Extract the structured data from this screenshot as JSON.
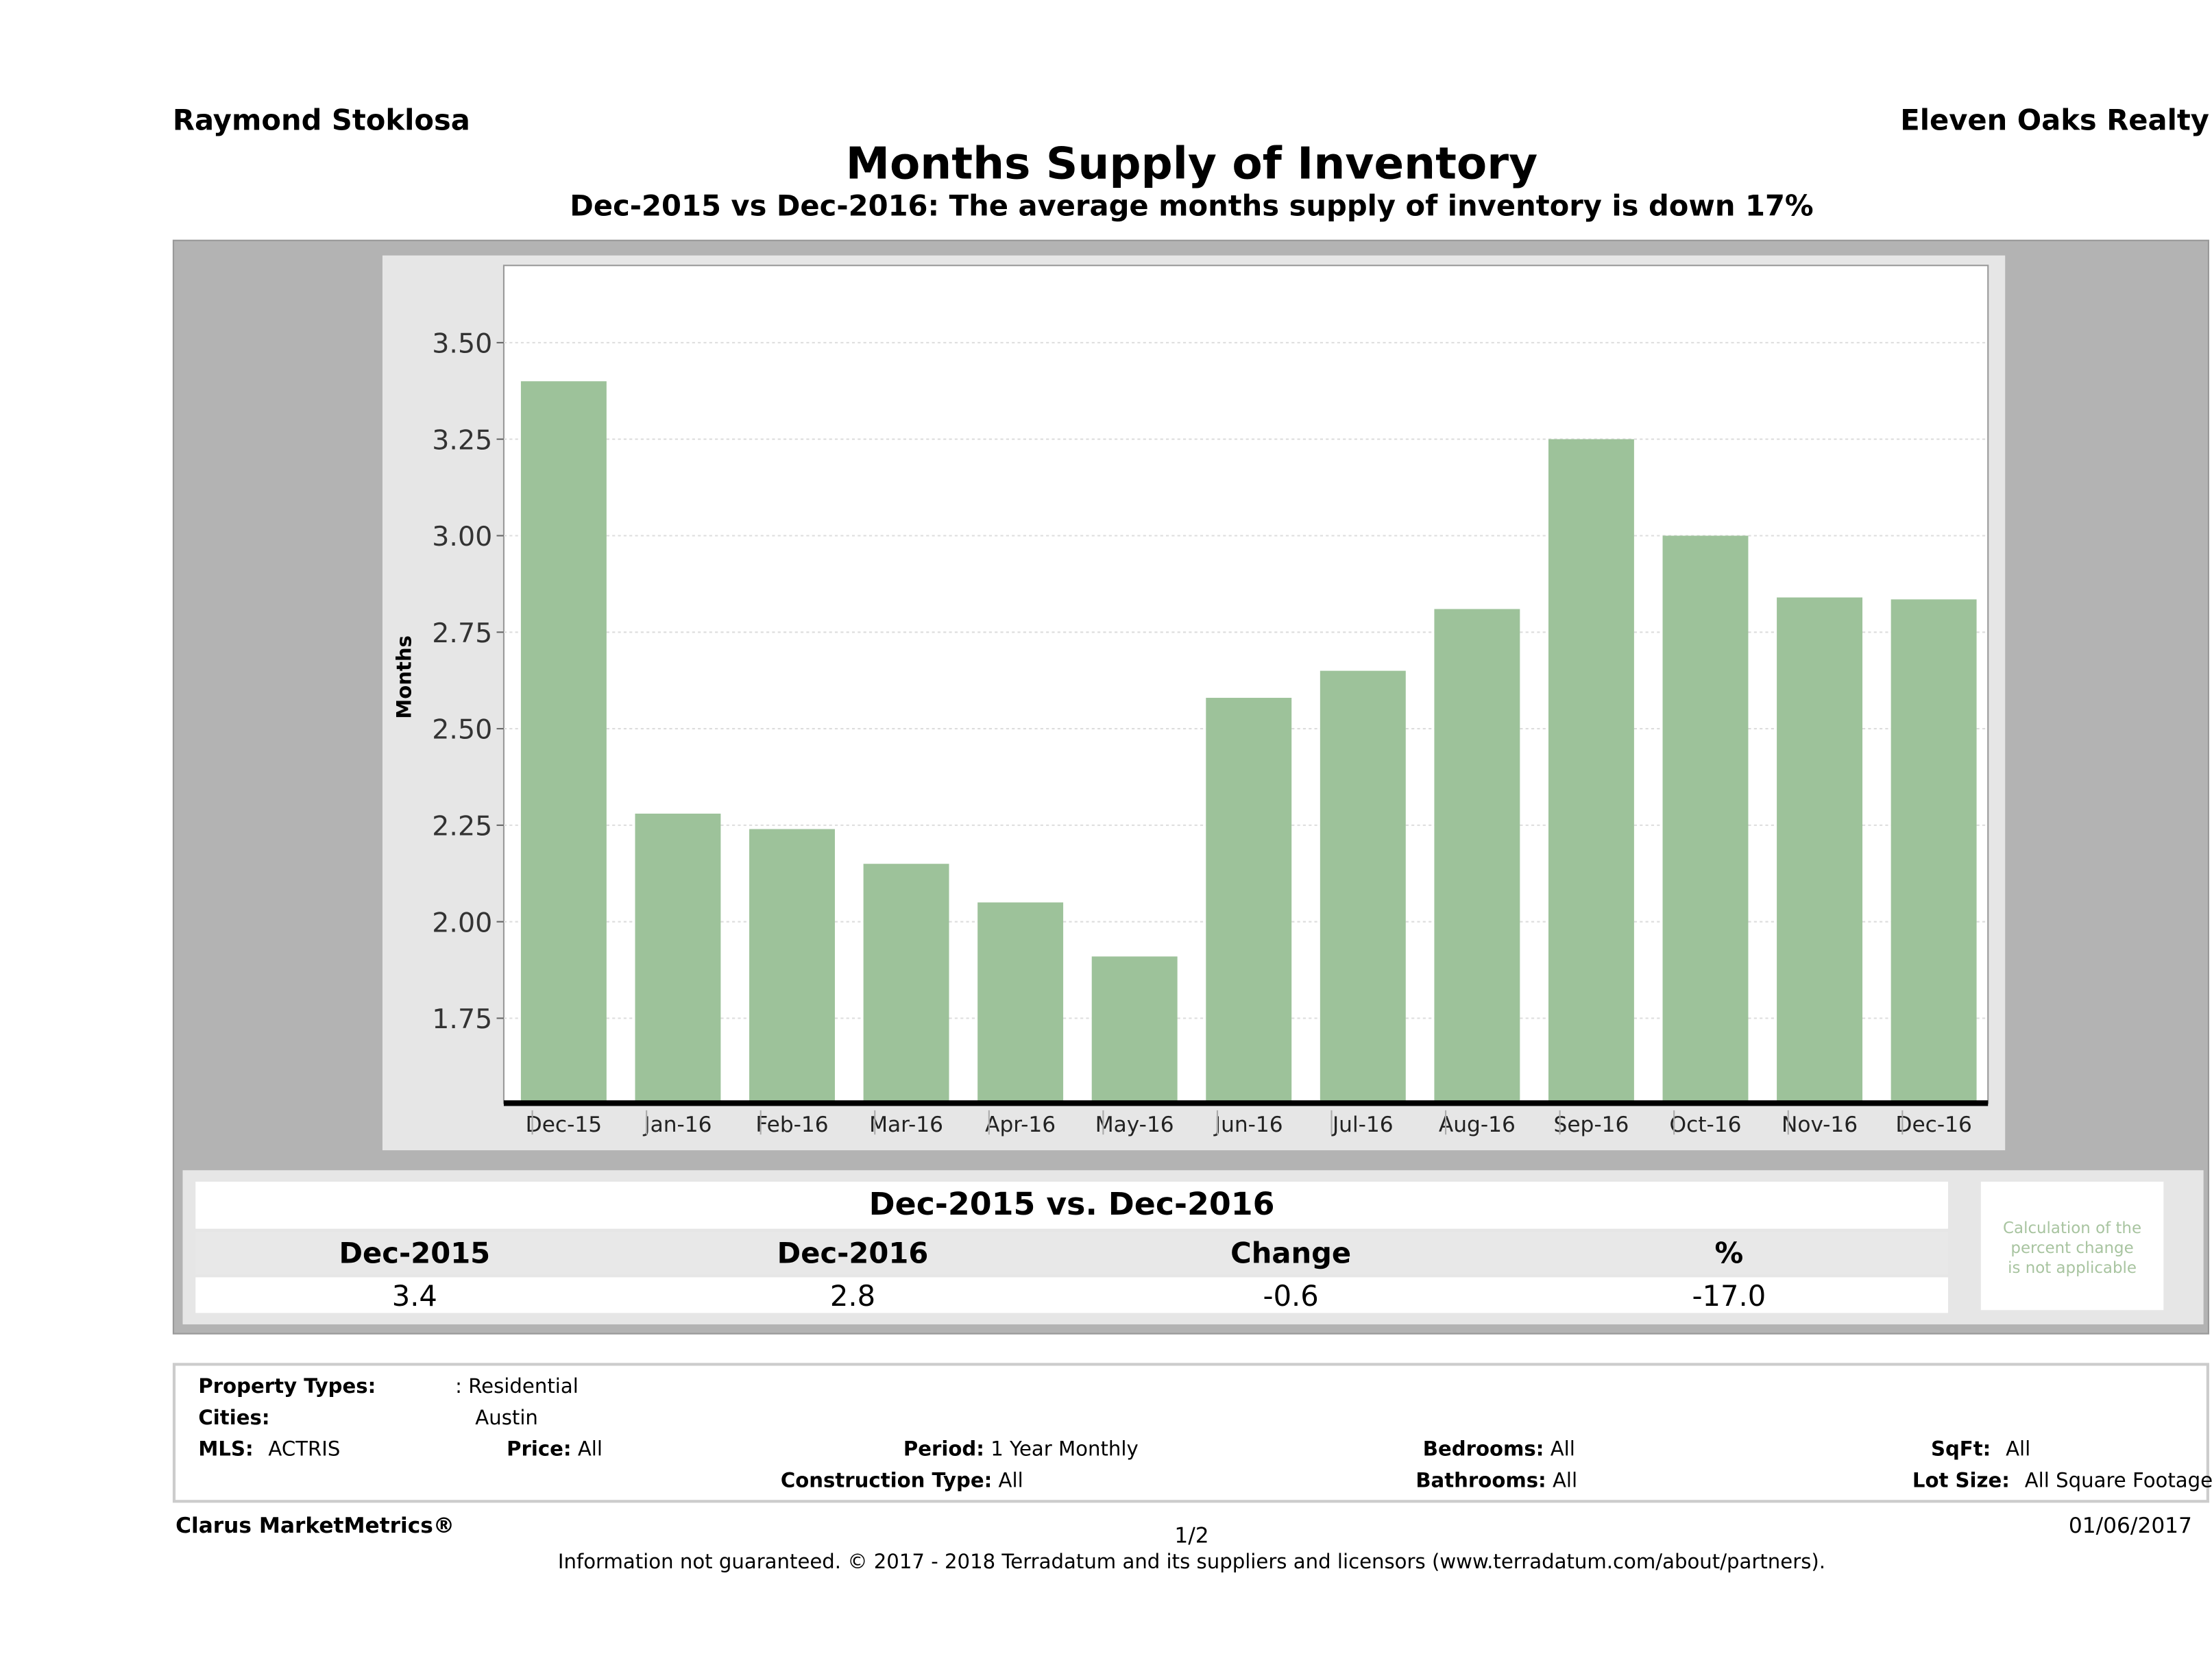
{
  "header": {
    "agent": "Raymond Stoklosa",
    "company": "Eleven Oaks Realty",
    "title": "Months Supply of Inventory",
    "subtitle": "Dec-2015 vs Dec-2016: The average months supply of inventory is down 17%"
  },
  "chart_data": {
    "type": "bar",
    "title": "Months Supply of Inventory",
    "xlabel": "",
    "ylabel": "Months",
    "categories": [
      "Dec-15",
      "Jan-16",
      "Feb-16",
      "Mar-16",
      "Apr-16",
      "May-16",
      "Jun-16",
      "Jul-16",
      "Aug-16",
      "Sep-16",
      "Oct-16",
      "Nov-16",
      "Dec-16"
    ],
    "values": [
      3.4,
      2.28,
      2.24,
      2.15,
      2.05,
      1.91,
      2.58,
      2.65,
      2.81,
      3.25,
      3.0,
      2.84,
      2.835
    ],
    "ylim": [
      1.53,
      3.7
    ],
    "yticks": [
      "1.75",
      "2.00",
      "2.25",
      "2.50",
      "2.75",
      "3.00",
      "3.25",
      "3.50"
    ],
    "grid": true,
    "bar_color": "#9dc29a"
  },
  "comparison": {
    "title": "Dec-2015 vs. Dec-2016",
    "headers": [
      "Dec-2015",
      "Dec-2016",
      "Change",
      "%"
    ],
    "values": [
      "3.4",
      "2.8",
      "-0.6",
      "-17.0"
    ],
    "note": [
      "Calculation of the",
      "percent change",
      "is not applicable"
    ]
  },
  "filters": {
    "property_types_label": "Property Types:",
    "property_types": ": Residential",
    "cities_label": "Cities:",
    "cities": "Austin",
    "mls_label": "MLS:",
    "mls": "ACTRIS",
    "price_label": "Price:",
    "price": "All",
    "period_label": "Period:",
    "period": "1 Year Monthly",
    "bedrooms_label": "Bedrooms:",
    "bedrooms": "All",
    "sqft_label": "SqFt:",
    "sqft": "All",
    "construction_label": "Construction Type:",
    "construction": "All",
    "bathrooms_label": "Bathrooms:",
    "bathrooms": "All",
    "lot_label": "Lot Size:",
    "lot": "All Square Footage"
  },
  "footer": {
    "brand": "Clarus MarketMetrics®",
    "page": "1/2",
    "date": "01/06/2017",
    "copyright": "Information not guaranteed. © 2017 - 2018 Terradatum and its suppliers and licensors (www.terradatum.com/about/partners)."
  }
}
